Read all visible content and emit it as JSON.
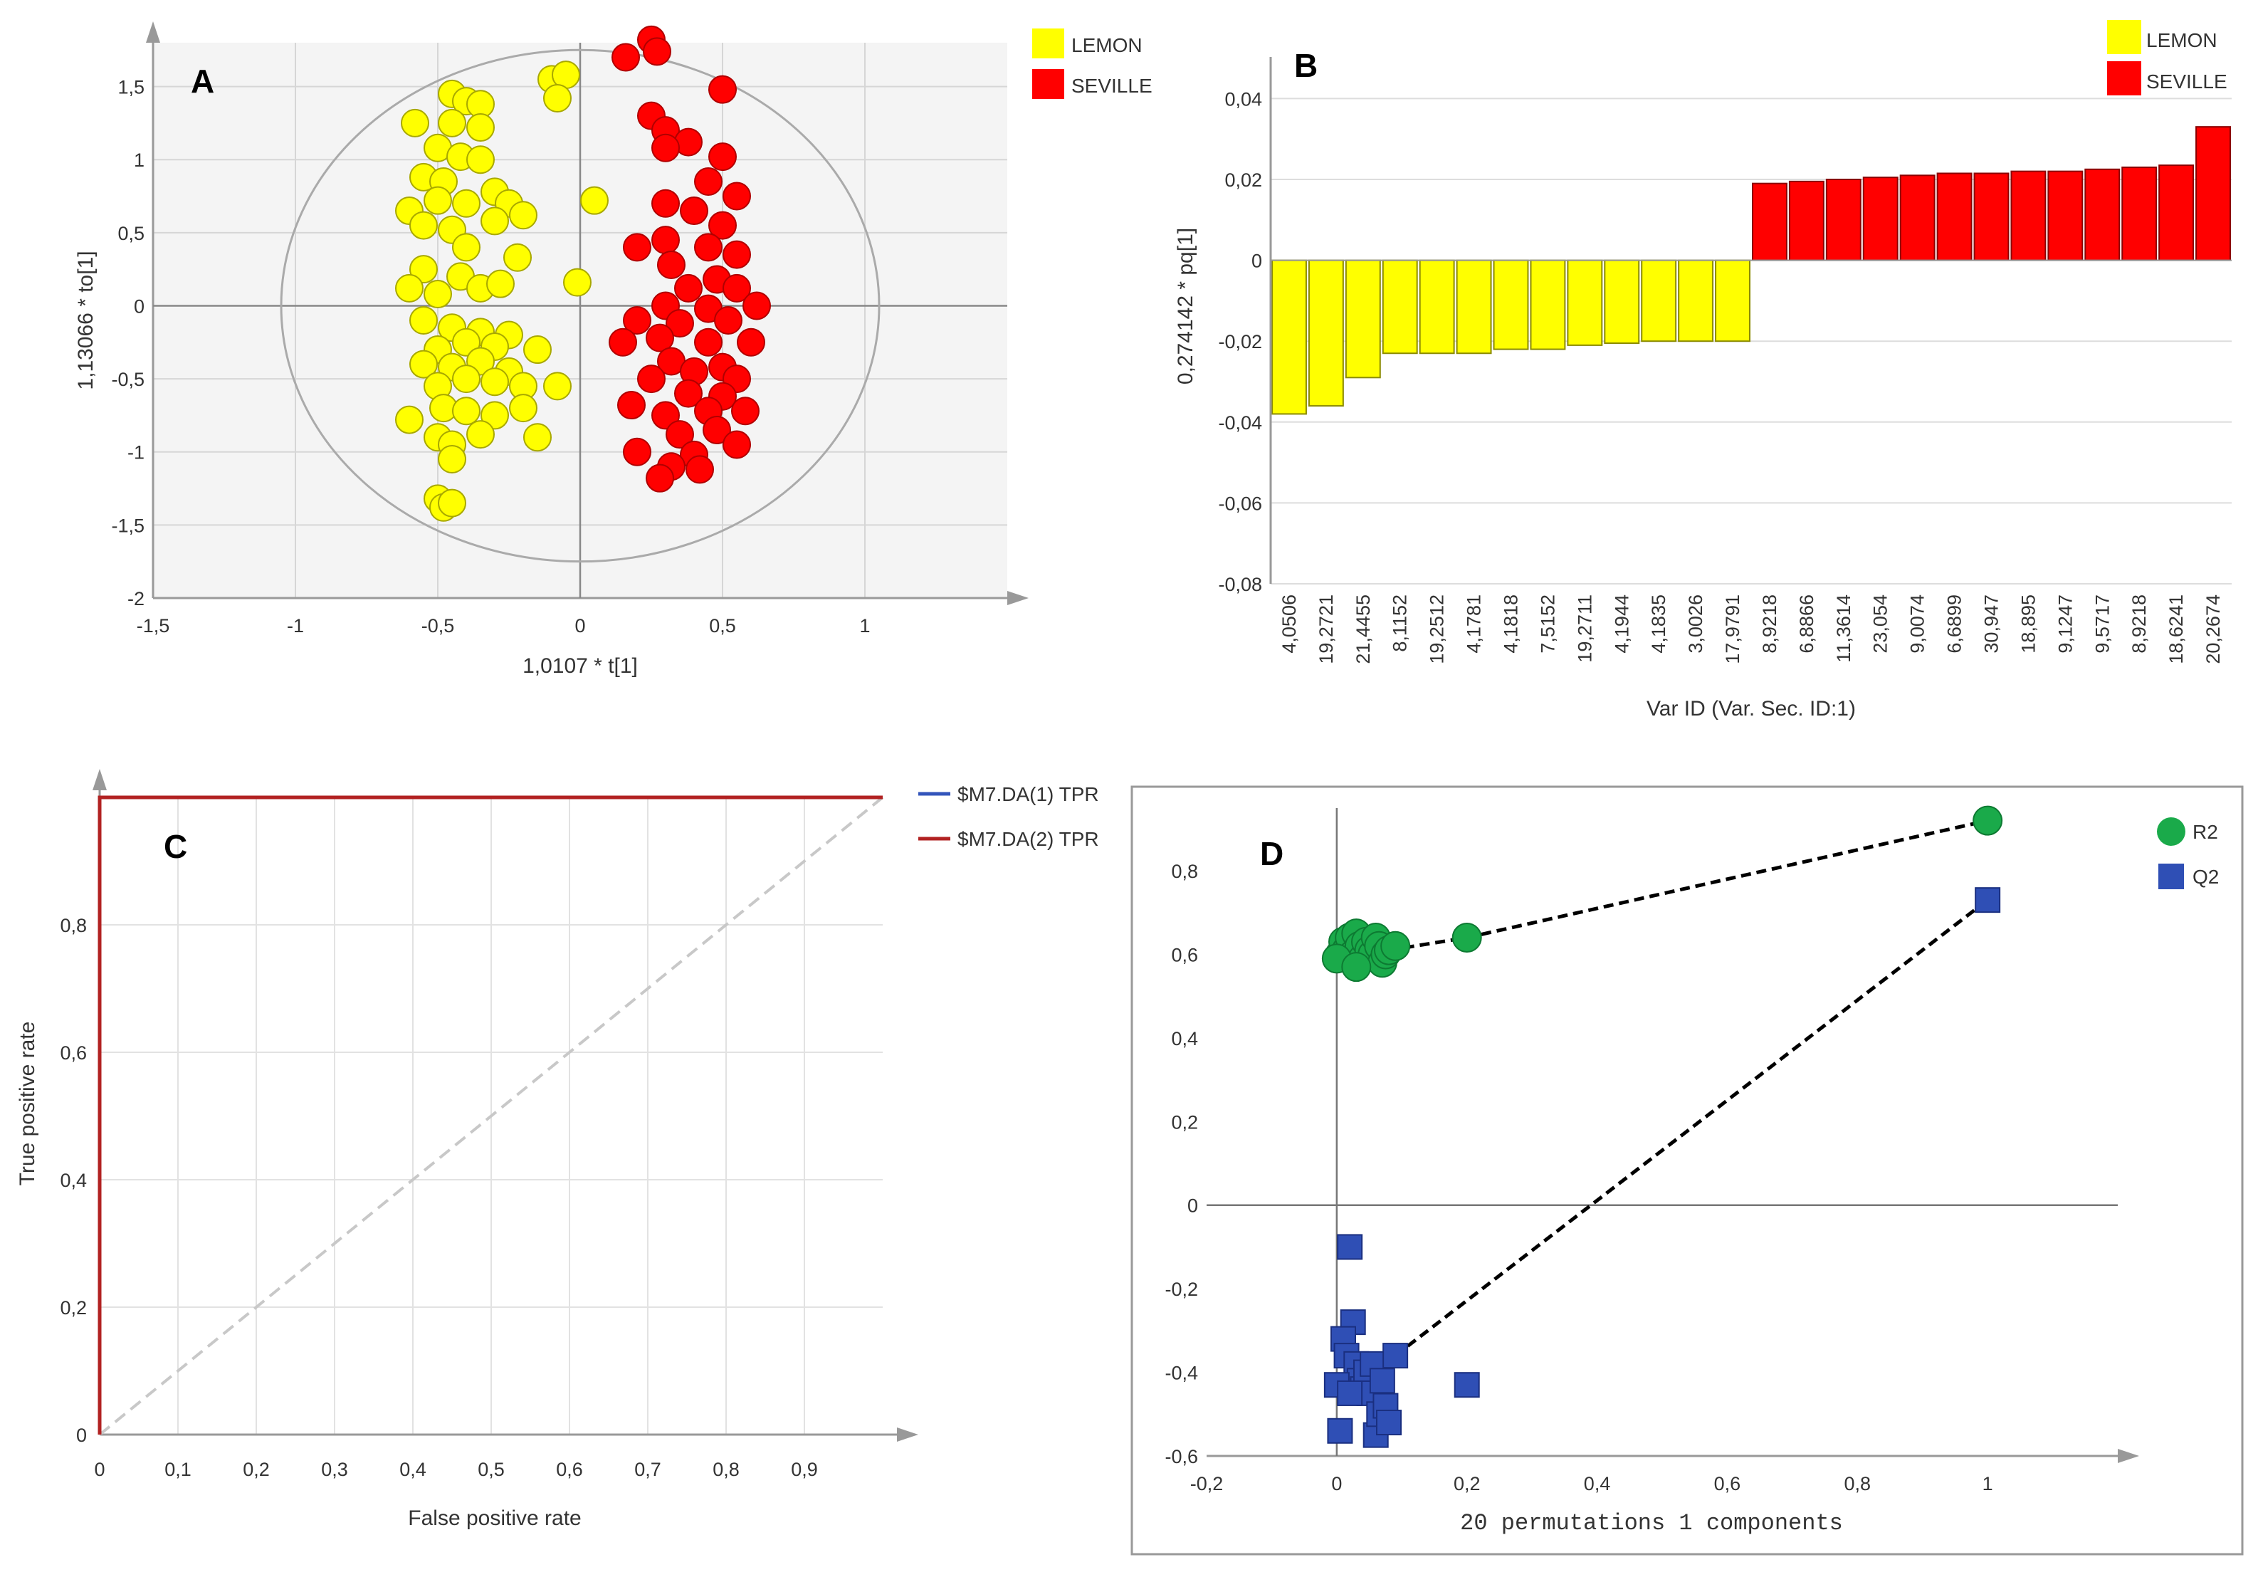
{
  "colors": {
    "lemon": "#ffff00",
    "seville": "#ff0000",
    "r2": "#1aaa4a",
    "q2": "#2f4fb5",
    "tpr1": "#3355bb",
    "tpr2": "#b22222"
  },
  "chart_data": [
    {
      "panel": "A",
      "type": "scatter",
      "xlabel": "1,0107 * t[1]",
      "ylabel": "1,13066 * to[1]",
      "xlim": [
        -1.5,
        1.5
      ],
      "ylim": [
        -2,
        1.8
      ],
      "xticks": [
        "-1,5",
        "-1",
        "-0,5",
        "0",
        "0,5",
        "1"
      ],
      "xtick_values": [
        -1.5,
        -1,
        -0.5,
        0,
        0.5,
        1
      ],
      "yticks": [
        "1,5",
        "1",
        "0,5",
        "0",
        "-0,5",
        "-1",
        "-1,5",
        "-2"
      ],
      "ytick_values": [
        1.5,
        1,
        0.5,
        0,
        -0.5,
        -1,
        -1.5,
        -2
      ],
      "ellipse": {
        "rx": 1.05,
        "ry": 1.75
      },
      "legend": [
        "LEMON",
        "SEVILLE"
      ],
      "series": [
        {
          "name": "LEMON",
          "points": [
            [
              -0.45,
              1.45
            ],
            [
              -0.4,
              1.4
            ],
            [
              -0.35,
              1.38
            ],
            [
              -0.58,
              1.25
            ],
            [
              -0.45,
              1.25
            ],
            [
              -0.35,
              1.22
            ],
            [
              -0.5,
              1.08
            ],
            [
              -0.42,
              1.02
            ],
            [
              -0.35,
              1.0
            ],
            [
              -0.55,
              0.88
            ],
            [
              -0.48,
              0.85
            ],
            [
              -0.3,
              0.78
            ],
            [
              -0.6,
              0.65
            ],
            [
              -0.5,
              0.72
            ],
            [
              -0.4,
              0.7
            ],
            [
              -0.25,
              0.7
            ],
            [
              -0.55,
              0.55
            ],
            [
              -0.45,
              0.52
            ],
            [
              -0.3,
              0.58
            ],
            [
              -0.2,
              0.62
            ],
            [
              -0.4,
              0.4
            ],
            [
              -0.22,
              0.33
            ],
            [
              -0.55,
              0.25
            ],
            [
              -0.42,
              0.2
            ],
            [
              -0.6,
              0.12
            ],
            [
              -0.5,
              0.08
            ],
            [
              -0.35,
              0.12
            ],
            [
              -0.28,
              0.15
            ],
            [
              -0.55,
              -0.1
            ],
            [
              -0.45,
              -0.15
            ],
            [
              -0.35,
              -0.18
            ],
            [
              -0.25,
              -0.2
            ],
            [
              -0.5,
              -0.3
            ],
            [
              -0.4,
              -0.25
            ],
            [
              -0.3,
              -0.28
            ],
            [
              -0.15,
              -0.3
            ],
            [
              -0.55,
              -0.4
            ],
            [
              -0.45,
              -0.42
            ],
            [
              -0.35,
              -0.38
            ],
            [
              -0.25,
              -0.45
            ],
            [
              -0.5,
              -0.55
            ],
            [
              -0.4,
              -0.5
            ],
            [
              -0.3,
              -0.52
            ],
            [
              -0.2,
              -0.55
            ],
            [
              -0.08,
              -0.55
            ],
            [
              -0.6,
              -0.78
            ],
            [
              -0.48,
              -0.7
            ],
            [
              -0.4,
              -0.72
            ],
            [
              -0.3,
              -0.75
            ],
            [
              -0.2,
              -0.7
            ],
            [
              -0.5,
              -0.9
            ],
            [
              -0.45,
              -0.95
            ],
            [
              -0.35,
              -0.88
            ],
            [
              -0.15,
              -0.9
            ],
            [
              -0.45,
              -1.05
            ],
            [
              -0.5,
              -1.32
            ],
            [
              -0.48,
              -1.38
            ],
            [
              -0.45,
              -1.35
            ],
            [
              -0.1,
              1.55
            ],
            [
              -0.05,
              1.58
            ],
            [
              -0.08,
              1.42
            ],
            [
              0.05,
              0.72
            ],
            [
              -0.01,
              0.16
            ]
          ]
        },
        {
          "name": "SEVILLE",
          "points": [
            [
              0.25,
              1.82
            ],
            [
              0.27,
              1.74
            ],
            [
              0.16,
              1.7
            ],
            [
              0.5,
              1.48
            ],
            [
              0.25,
              1.3
            ],
            [
              0.3,
              1.2
            ],
            [
              0.38,
              1.12
            ],
            [
              0.5,
              1.02
            ],
            [
              0.3,
              1.08
            ],
            [
              0.45,
              0.85
            ],
            [
              0.55,
              0.75
            ],
            [
              0.3,
              0.7
            ],
            [
              0.4,
              0.65
            ],
            [
              0.5,
              0.55
            ],
            [
              0.3,
              0.45
            ],
            [
              0.2,
              0.4
            ],
            [
              0.45,
              0.4
            ],
            [
              0.55,
              0.35
            ],
            [
              0.32,
              0.28
            ],
            [
              0.48,
              0.18
            ],
            [
              0.38,
              0.12
            ],
            [
              0.55,
              0.12
            ],
            [
              0.62,
              0.0
            ],
            [
              0.3,
              0.0
            ],
            [
              0.45,
              -0.02
            ],
            [
              0.2,
              -0.1
            ],
            [
              0.35,
              -0.12
            ],
            [
              0.52,
              -0.1
            ],
            [
              0.15,
              -0.25
            ],
            [
              0.28,
              -0.22
            ],
            [
              0.45,
              -0.25
            ],
            [
              0.6,
              -0.25
            ],
            [
              0.32,
              -0.38
            ],
            [
              0.5,
              -0.42
            ],
            [
              0.4,
              -0.45
            ],
            [
              0.55,
              -0.5
            ],
            [
              0.25,
              -0.5
            ],
            [
              0.38,
              -0.6
            ],
            [
              0.5,
              -0.62
            ],
            [
              0.18,
              -0.68
            ],
            [
              0.45,
              -0.72
            ],
            [
              0.3,
              -0.75
            ],
            [
              0.58,
              -0.72
            ],
            [
              0.48,
              -0.85
            ],
            [
              0.35,
              -0.88
            ],
            [
              0.2,
              -1.0
            ],
            [
              0.4,
              -1.02
            ],
            [
              0.32,
              -1.1
            ],
            [
              0.42,
              -1.12
            ],
            [
              0.55,
              -0.95
            ],
            [
              0.28,
              -1.18
            ]
          ]
        }
      ]
    },
    {
      "panel": "B",
      "type": "bar",
      "xlabel": "Var ID (Var. Sec. ID:1)",
      "ylabel": "0,274142 * pq[1]",
      "ylim": [
        -0.08,
        0.045
      ],
      "yticks": [
        "0,04",
        "0,02",
        "0",
        "-0,02",
        "-0,04",
        "-0,06",
        "-0,08"
      ],
      "ytick_values": [
        0.04,
        0.02,
        0,
        -0.02,
        -0.04,
        -0.06,
        -0.08
      ],
      "categories": [
        "4,0506",
        "19,2721",
        "21,4455",
        "8,1152",
        "19,2512",
        "4,1781",
        "4,1818",
        "7,5152",
        "19,2711",
        "4,1944",
        "4,1835",
        "3,0026",
        "17,9791",
        "8,9218",
        "6,8866",
        "11,3614",
        "23,054",
        "9,0074",
        "6,6899",
        "30,947",
        "18,895",
        "9,1247",
        "9,5717",
        "8,9218",
        "18,6241",
        "20,2674"
      ],
      "values": [
        -0.038,
        -0.036,
        -0.029,
        -0.023,
        -0.023,
        -0.023,
        -0.022,
        -0.022,
        -0.021,
        -0.0205,
        -0.02,
        -0.02,
        -0.02,
        0.019,
        0.0195,
        0.02,
        0.0205,
        0.021,
        0.0215,
        0.0215,
        0.022,
        0.022,
        0.0225,
        0.023,
        0.0235,
        0.033
      ],
      "groups": [
        "LEMON",
        "LEMON",
        "LEMON",
        "LEMON",
        "LEMON",
        "LEMON",
        "LEMON",
        "LEMON",
        "LEMON",
        "LEMON",
        "LEMON",
        "LEMON",
        "LEMON",
        "SEVILLE",
        "SEVILLE",
        "SEVILLE",
        "SEVILLE",
        "SEVILLE",
        "SEVILLE",
        "SEVILLE",
        "SEVILLE",
        "SEVILLE",
        "SEVILLE",
        "SEVILLE",
        "SEVILLE",
        "SEVILLE"
      ],
      "legend": [
        "LEMON",
        "SEVILLE"
      ]
    },
    {
      "panel": "C",
      "type": "line",
      "xlabel": "False positive rate",
      "ylabel": "True positive rate",
      "xlim": [
        0,
        1
      ],
      "ylim": [
        0,
        1
      ],
      "xticks": [
        "0",
        "0,1",
        "0,2",
        "0,3",
        "0,4",
        "0,5",
        "0,6",
        "0,7",
        "0,8",
        "0,9"
      ],
      "xtick_values": [
        0,
        0.1,
        0.2,
        0.3,
        0.4,
        0.5,
        0.6,
        0.7,
        0.8,
        0.9
      ],
      "yticks": [
        "0,8",
        "0,6",
        "0,4",
        "0,2",
        "0"
      ],
      "ytick_values": [
        0.8,
        0.6,
        0.4,
        0.2,
        0
      ],
      "series": [
        {
          "name": "$M7.DA(1) TPR",
          "x": [
            0,
            0,
            1
          ],
          "y": [
            0,
            1,
            1
          ]
        },
        {
          "name": "$M7.DA(2) TPR",
          "x": [
            0,
            0,
            1
          ],
          "y": [
            0,
            1,
            1
          ]
        }
      ],
      "reference": {
        "x": [
          0,
          1
        ],
        "y": [
          0,
          1
        ]
      }
    },
    {
      "panel": "D",
      "type": "scatter",
      "xlabel": "20 permutations 1 components",
      "xlim": [
        -0.2,
        1.2
      ],
      "ylim": [
        -0.6,
        0.95
      ],
      "xticks": [
        "-0,2",
        "0",
        "0,2",
        "0,4",
        "0,6",
        "0,8",
        "1"
      ],
      "xtick_values": [
        -0.2,
        0,
        0.2,
        0.4,
        0.6,
        0.8,
        1
      ],
      "yticks": [
        "0,8",
        "0,6",
        "0,4",
        "0,2",
        "0",
        "-0,2",
        "-0,4",
        "-0,6"
      ],
      "ytick_values": [
        0.8,
        0.6,
        0.4,
        0.2,
        0,
        -0.2,
        -0.4,
        -0.6
      ],
      "legend": [
        "R2",
        "Q2"
      ],
      "series": [
        {
          "name": "R2",
          "marker": "circle",
          "x": [
            0.005,
            0.01,
            0.015,
            0.02,
            0.025,
            0.03,
            0.035,
            0.04,
            0.045,
            0.05,
            0.055,
            0.06,
            0.065,
            0.07,
            0.075,
            0.08,
            0.09,
            0.0,
            0.03,
            0.2,
            1.0
          ],
          "y": [
            0.6,
            0.63,
            0.61,
            0.64,
            0.6,
            0.65,
            0.62,
            0.59,
            0.63,
            0.61,
            0.6,
            0.64,
            0.62,
            0.58,
            0.6,
            0.61,
            0.62,
            0.59,
            0.57,
            0.64,
            0.92
          ],
          "trend": {
            "x": [
              0.08,
              0.2,
              1.0
            ],
            "y": [
              0.61,
              0.64,
              0.92
            ]
          }
        },
        {
          "name": "Q2",
          "marker": "square",
          "x": [
            0.02,
            0.025,
            0.01,
            0.015,
            0.03,
            0.035,
            0.04,
            0.045,
            0.05,
            0.055,
            0.06,
            0.065,
            0.07,
            0.075,
            0.08,
            0.0,
            0.005,
            0.09,
            0.02,
            0.2,
            1.0
          ],
          "y": [
            -0.1,
            -0.28,
            -0.32,
            -0.36,
            -0.38,
            -0.42,
            -0.44,
            -0.4,
            -0.45,
            -0.38,
            -0.55,
            -0.5,
            -0.42,
            -0.48,
            -0.52,
            -0.43,
            -0.54,
            -0.36,
            -0.45,
            -0.43,
            0.73
          ],
          "trend": {
            "x": [
              0.09,
              1.0
            ],
            "y": [
              -0.36,
              0.73
            ]
          }
        }
      ]
    }
  ]
}
